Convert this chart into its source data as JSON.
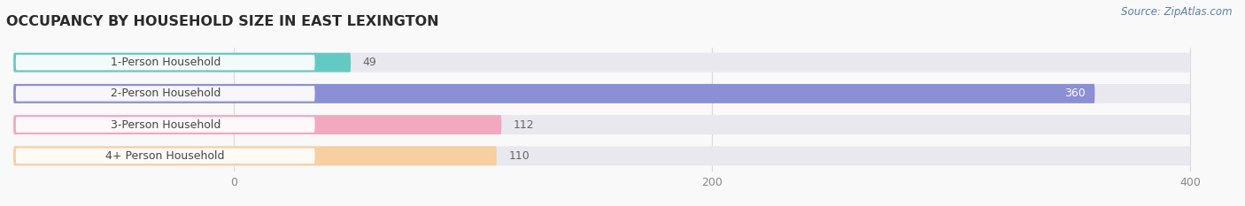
{
  "title": "OCCUPANCY BY HOUSEHOLD SIZE IN EAST LEXINGTON",
  "source": "Source: ZipAtlas.com",
  "categories": [
    "1-Person Household",
    "2-Person Household",
    "3-Person Household",
    "4+ Person Household"
  ],
  "values": [
    49,
    360,
    112,
    110
  ],
  "bar_colors": [
    "#62cac3",
    "#8b8fd4",
    "#f2a8bf",
    "#f7cfa0"
  ],
  "bar_bg_color": "#e8e8ee",
  "label_bg_color": "#ffffff",
  "xlim": [
    0,
    400
  ],
  "xticks": [
    0,
    200,
    400
  ],
  "title_fontsize": 11.5,
  "label_fontsize": 9,
  "value_fontsize": 9,
  "source_fontsize": 8.5,
  "bar_height": 0.62,
  "fig_bg_color": "#f9f9f9",
  "label_color": "#444444",
  "value_color_inside": "#ffffff",
  "value_color_outside": "#666666",
  "grid_color": "#d8d8e0",
  "tick_color": "#888888"
}
